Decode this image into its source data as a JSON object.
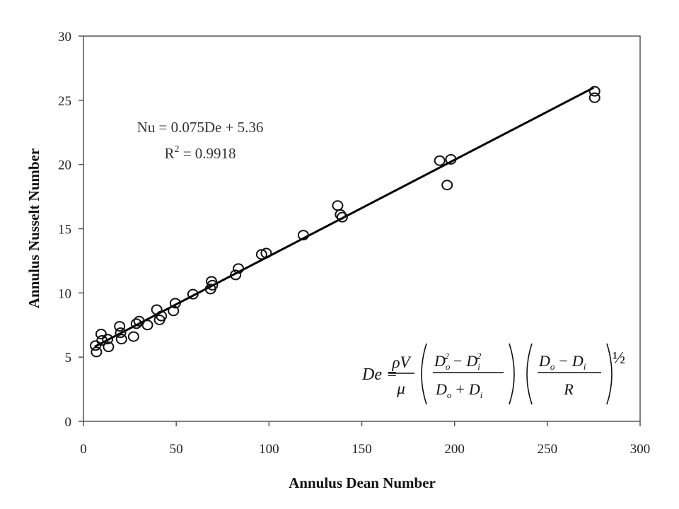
{
  "chart_data": {
    "type": "scatter",
    "xlabel": "Annulus Dean Number",
    "ylabel": "Annulus Nusselt Number",
    "xlim": [
      0,
      300
    ],
    "ylim": [
      0,
      30
    ],
    "x_ticks": [
      0,
      50,
      100,
      150,
      200,
      250,
      300
    ],
    "y_ticks": [
      0,
      5,
      10,
      15,
      20,
      25,
      30
    ],
    "grid": false,
    "points": [
      {
        "x": 6.5,
        "y": 5.9
      },
      {
        "x": 7,
        "y": 5.4
      },
      {
        "x": 9.5,
        "y": 6.8
      },
      {
        "x": 10,
        "y": 6.3
      },
      {
        "x": 13,
        "y": 6.4
      },
      {
        "x": 13.5,
        "y": 5.8
      },
      {
        "x": 19.5,
        "y": 7.4
      },
      {
        "x": 20,
        "y": 6.9
      },
      {
        "x": 20.5,
        "y": 6.4
      },
      {
        "x": 27,
        "y": 6.6
      },
      {
        "x": 28.5,
        "y": 7.6
      },
      {
        "x": 30,
        "y": 7.8
      },
      {
        "x": 34.5,
        "y": 7.5
      },
      {
        "x": 39.5,
        "y": 8.7
      },
      {
        "x": 41,
        "y": 7.9
      },
      {
        "x": 42,
        "y": 8.2
      },
      {
        "x": 48.5,
        "y": 8.6
      },
      {
        "x": 49.5,
        "y": 9.2
      },
      {
        "x": 59,
        "y": 9.9
      },
      {
        "x": 68.5,
        "y": 10.3
      },
      {
        "x": 69,
        "y": 10.9
      },
      {
        "x": 69.5,
        "y": 10.6
      },
      {
        "x": 82,
        "y": 11.4
      },
      {
        "x": 83.5,
        "y": 11.9
      },
      {
        "x": 96,
        "y": 13.0
      },
      {
        "x": 98.5,
        "y": 13.1
      },
      {
        "x": 118.5,
        "y": 14.5
      },
      {
        "x": 137,
        "y": 16.8
      },
      {
        "x": 138.5,
        "y": 16.1
      },
      {
        "x": 139.5,
        "y": 15.9
      },
      {
        "x": 192,
        "y": 20.3
      },
      {
        "x": 196,
        "y": 18.4
      },
      {
        "x": 198,
        "y": 20.4
      },
      {
        "x": 275.5,
        "y": 25.7
      },
      {
        "x": 275.5,
        "y": 25.2
      }
    ],
    "fit": {
      "slope": 0.075,
      "intercept": 5.36,
      "x_from": 6,
      "x_to": 275
    },
    "equation_label": "Nu = 0.075De + 5.36",
    "r2_prefix": "R",
    "r2_sup": "2",
    "r2_value": " = 0.9918",
    "formula": {
      "lhs": "De =",
      "rho_v": "ρV",
      "mu": "μ",
      "d": "D",
      "sub_o": "o",
      "sub_i": "i",
      "sup_2": "2",
      "minus": "−",
      "plus": "+",
      "r": "R",
      "exponent": "½"
    }
  }
}
